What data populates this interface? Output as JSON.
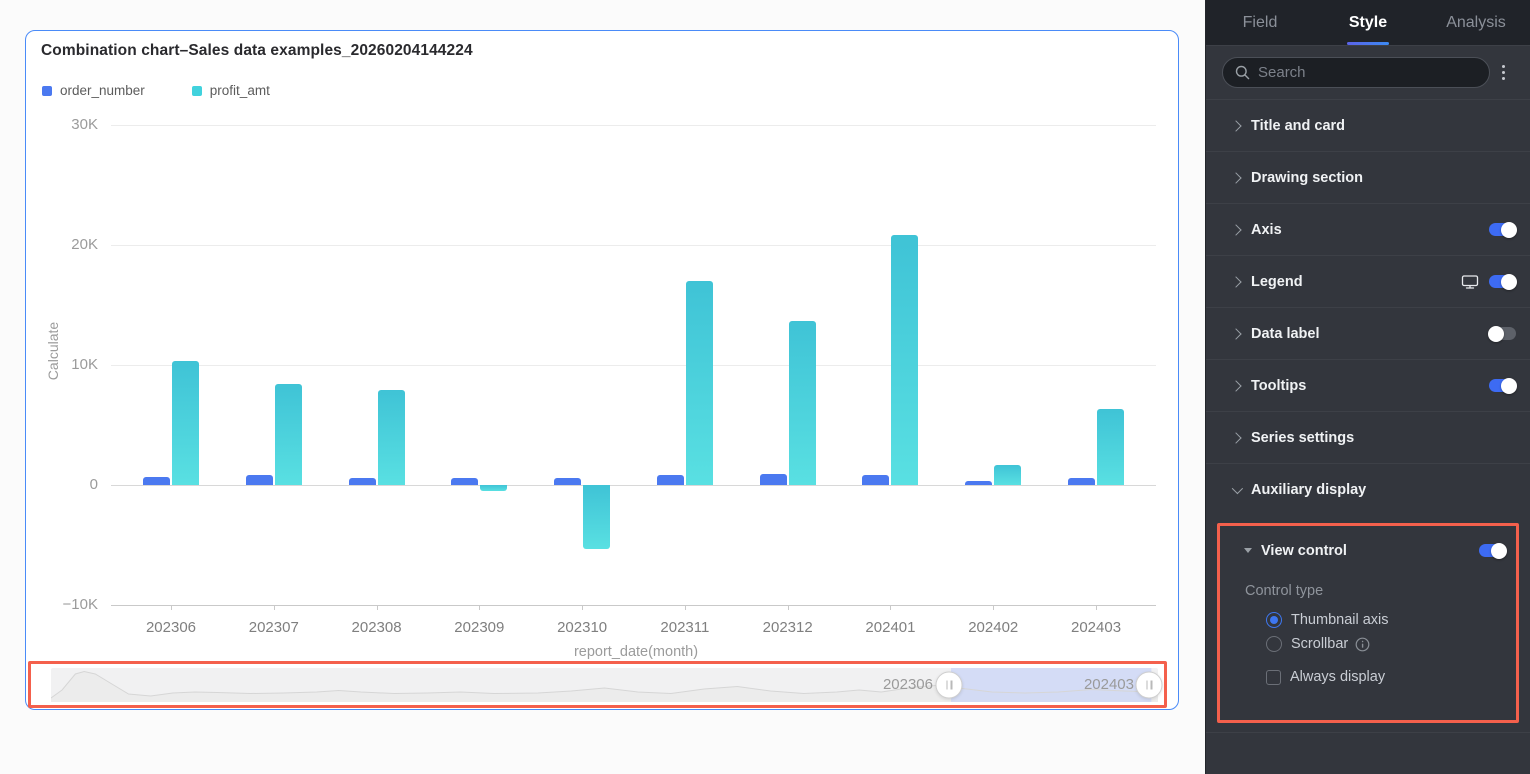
{
  "chart": {
    "title": "Combination chart–Sales data examples_20260204144224",
    "ylabel": "Calculate",
    "xlabel": "report_date(month)"
  },
  "chart_data": {
    "type": "bar",
    "title": "Combination chart–Sales data examples_20260204144224",
    "xlabel": "report_date(month)",
    "ylabel": "Calculate",
    "categories": [
      "202306",
      "202307",
      "202308",
      "202309",
      "202310",
      "202311",
      "202312",
      "202401",
      "202402",
      "202403"
    ],
    "series": [
      {
        "name": "order_number",
        "color": "#4b79f0",
        "values": [
          700,
          800,
          550,
          550,
          550,
          800,
          950,
          850,
          300,
          600
        ]
      },
      {
        "name": "profit_amt",
        "color": "#41d2dd",
        "gradient": [
          "#3fc3d6",
          "#59e0e2"
        ],
        "values": [
          10300,
          8400,
          7900,
          -500,
          -5300,
          17000,
          13700,
          20800,
          1700,
          6300
        ]
      }
    ],
    "ylim": [
      -10000,
      30000
    ],
    "yticks": [
      {
        "label": "30K",
        "value": 30000
      },
      {
        "label": "20K",
        "value": 20000
      },
      {
        "label": "10K",
        "value": 10000
      },
      {
        "label": "0",
        "value": 0
      },
      {
        "label": "−10K",
        "value": -10000
      }
    ],
    "grid": true,
    "legend_position": "top-left"
  },
  "thumbnail": {
    "start_label": "202306",
    "end_label": "202403",
    "sparkline": [
      [
        0,
        30
      ],
      [
        1,
        22
      ],
      [
        2.2,
        6
      ],
      [
        3,
        3.5
      ],
      [
        4,
        6
      ],
      [
        5.5,
        16
      ],
      [
        7,
        26
      ],
      [
        9,
        28
      ],
      [
        11,
        25
      ],
      [
        13,
        24
      ],
      [
        15,
        24.5
      ],
      [
        18,
        25.5
      ],
      [
        21,
        25
      ],
      [
        24,
        24
      ],
      [
        26,
        22.5
      ],
      [
        28,
        24
      ],
      [
        31,
        25.5
      ],
      [
        34,
        25
      ],
      [
        37,
        24
      ],
      [
        40,
        25.5
      ],
      [
        44,
        25
      ],
      [
        47,
        23
      ],
      [
        50,
        20
      ],
      [
        53,
        24
      ],
      [
        56,
        25.5
      ],
      [
        59,
        21
      ],
      [
        62,
        18.5
      ],
      [
        65,
        23
      ],
      [
        68,
        25.5
      ],
      [
        71,
        24
      ],
      [
        73,
        22
      ],
      [
        75,
        24
      ],
      [
        78,
        19
      ],
      [
        80,
        17.5
      ],
      [
        82,
        20
      ],
      [
        85,
        24
      ],
      [
        88,
        25
      ],
      [
        91,
        24
      ],
      [
        94,
        21.5
      ],
      [
        97,
        23
      ],
      [
        100,
        24
      ]
    ]
  },
  "panel": {
    "tabs": [
      {
        "label": "Field",
        "active": false
      },
      {
        "label": "Style",
        "active": true
      },
      {
        "label": "Analysis",
        "active": false
      }
    ],
    "search_placeholder": "Search",
    "sections": [
      {
        "label": "Title and card",
        "expanded": false,
        "toggle": null,
        "monitor": false
      },
      {
        "label": "Drawing section",
        "expanded": false,
        "toggle": null,
        "monitor": false
      },
      {
        "label": "Axis",
        "expanded": false,
        "toggle": "on",
        "monitor": false
      },
      {
        "label": "Legend",
        "expanded": false,
        "toggle": "on",
        "monitor": true
      },
      {
        "label": "Data label",
        "expanded": false,
        "toggle": "off",
        "monitor": false
      },
      {
        "label": "Tooltips",
        "expanded": false,
        "toggle": "on",
        "monitor": false
      },
      {
        "label": "Series settings",
        "expanded": false,
        "toggle": null,
        "monitor": false
      },
      {
        "label": "Auxiliary display",
        "expanded": true,
        "toggle": null,
        "monitor": false
      }
    ],
    "view_control": {
      "label": "View control",
      "toggle": "on",
      "control_type_label": "Control type",
      "radios": [
        {
          "label": "Thumbnail axis",
          "selected": true,
          "info": false
        },
        {
          "label": "Scrollbar",
          "selected": false,
          "info": true
        }
      ],
      "checkbox": {
        "label": "Always display",
        "checked": false
      }
    }
  },
  "colors": {
    "accent_blue": "#3d6bf3",
    "card_border": "#4a8bf8",
    "highlight_red": "#f4604c",
    "series_blue": "#4b79f0",
    "series_cyan": "#41d2dd"
  }
}
